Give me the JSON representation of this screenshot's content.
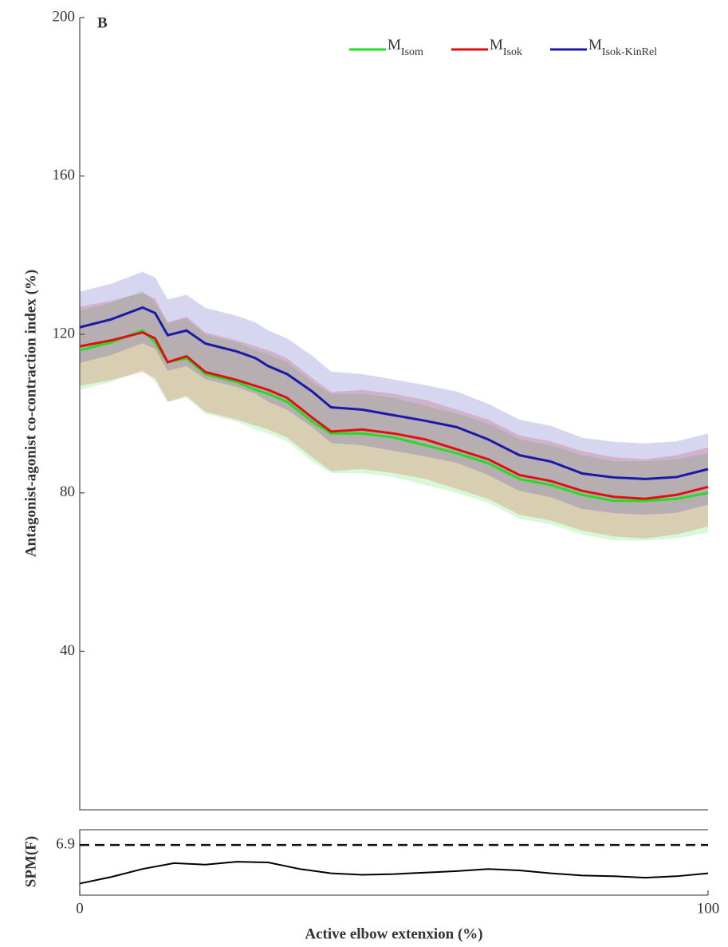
{
  "chart_data": [
    {
      "type": "line",
      "panel_label": "B",
      "y_label": "Antagonist-agonist co-contraction index (%)",
      "xlim": [
        0,
        100
      ],
      "ylim": [
        0,
        200
      ],
      "yticks": [
        40,
        80,
        120,
        160,
        200
      ],
      "x": [
        0,
        5,
        10,
        12,
        14,
        17,
        20,
        25,
        28,
        30,
        33,
        37,
        40,
        45,
        50,
        55,
        60,
        65,
        70,
        75,
        80,
        85,
        90,
        95,
        100
      ],
      "series": [
        {
          "name": "M",
          "name_subscript": "Isom",
          "color": "#22dd22",
          "sd": 10,
          "values": [
            116,
            118,
            121,
            118,
            113,
            114,
            110,
            108,
            106,
            105,
            103,
            98,
            95,
            95,
            94,
            92,
            90,
            87.5,
            83.5,
            82,
            79.5,
            78,
            78,
            78.5,
            80
          ]
        },
        {
          "name": "M",
          "name_subscript": "Isok",
          "color": "#dd1111",
          "sd": 10,
          "values": [
            117,
            118.5,
            120.5,
            119,
            113,
            114.5,
            110.5,
            108.5,
            107,
            106,
            104,
            99,
            95.5,
            96,
            95,
            93.5,
            91,
            88.5,
            84.5,
            83,
            80.5,
            79,
            78.5,
            79.5,
            81.5
          ]
        },
        {
          "name": "M",
          "name_subscript": "Isok-KinRel",
          "color": "#1a1aaa",
          "sd": 9,
          "values": [
            121.8,
            123.8,
            126.8,
            125.4,
            119.8,
            121,
            117.7,
            115.7,
            114,
            112,
            110,
            105.6,
            101.6,
            101,
            99.6,
            98.2,
            96.6,
            93.5,
            89.5,
            87.9,
            84.9,
            83.9,
            83.5,
            84,
            86
          ]
        }
      ]
    },
    {
      "type": "spm",
      "y_label": "SPM(F)",
      "x_label": "Active elbow extenxion (%)",
      "xlim": [
        0,
        100
      ],
      "xticks": [
        0,
        100
      ],
      "ylim": [
        0,
        9
      ],
      "yticks": [
        6.9
      ],
      "threshold": 6.9,
      "color": "#000000",
      "x": [
        0,
        5,
        10,
        15,
        20,
        25,
        30,
        35,
        40,
        45,
        50,
        55,
        60,
        65,
        70,
        75,
        80,
        85,
        90,
        95,
        100
      ],
      "values": [
        1.6,
        2.5,
        3.6,
        4.4,
        4.2,
        4.6,
        4.5,
        3.6,
        3.0,
        2.8,
        2.9,
        3.1,
        3.3,
        3.6,
        3.4,
        3.0,
        2.7,
        2.6,
        2.4,
        2.6,
        3.0
      ]
    }
  ]
}
